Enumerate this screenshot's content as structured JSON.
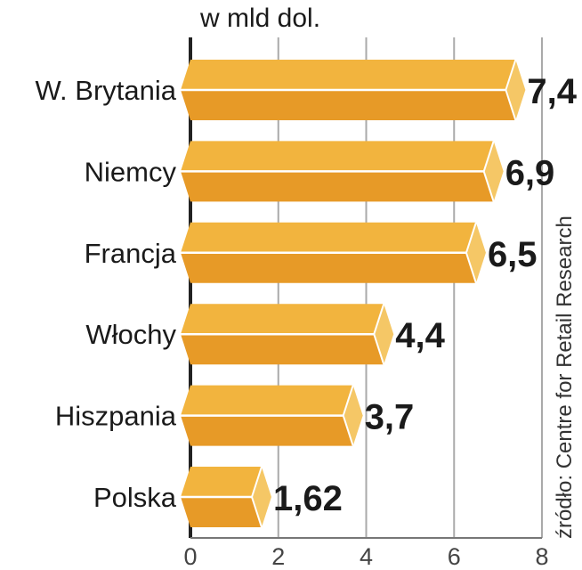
{
  "chart_data": {
    "type": "bar",
    "orientation": "horizontal",
    "unit_label": "w mld dol.",
    "categories": [
      "W. Brytania",
      "Niemcy",
      "Francja",
      "Włochy",
      "Hiszpania",
      "Polska"
    ],
    "values": [
      7.4,
      6.9,
      6.5,
      4.4,
      3.7,
      1.62
    ],
    "value_labels": [
      "7,4",
      "6,9",
      "6,5",
      "4,4",
      "3,7",
      "1,62"
    ],
    "xlim": [
      0,
      8
    ],
    "xticks": [
      0,
      2,
      4,
      6,
      8
    ],
    "xtick_labels": [
      "0",
      "2",
      "4",
      "6",
      "8"
    ],
    "grid": true,
    "source": "źródło: Centre for Retail Research",
    "colors": {
      "top": "#f2b43e",
      "bottom": "#e79a27",
      "cap": "#f5c766",
      "grid": "#aaaaaa"
    }
  }
}
